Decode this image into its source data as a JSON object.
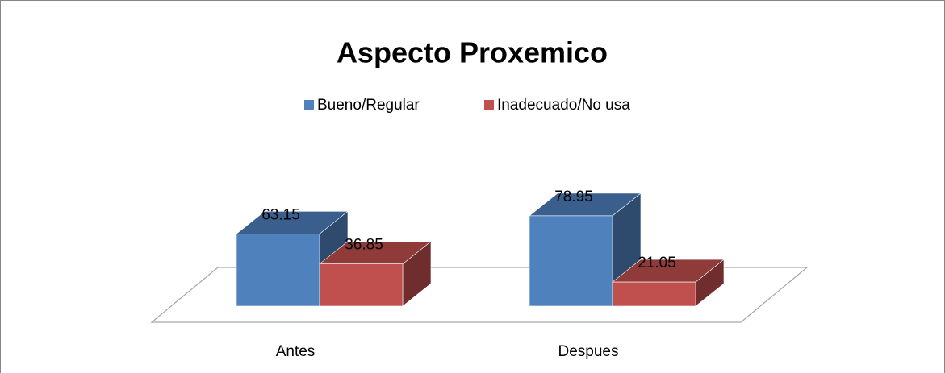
{
  "chart_data": {
    "type": "bar3d",
    "title": "Aspecto Proxemico",
    "categories": [
      "Antes",
      "Despues"
    ],
    "series": [
      {
        "name": "Bueno/Regular",
        "color": "#4f81bd",
        "values": [
          63.15,
          78.95
        ]
      },
      {
        "name": "Inadecuado/No usa",
        "color": "#c0504d",
        "values": [
          36.85,
          21.05
        ]
      }
    ],
    "data_labels": true,
    "legend": "top"
  }
}
